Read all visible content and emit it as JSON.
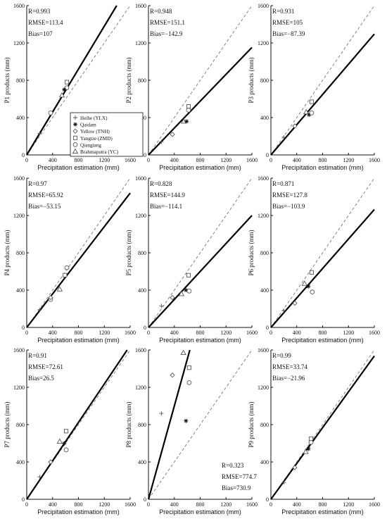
{
  "chart_data": [
    {
      "id": "P1",
      "type": "scatter",
      "ylabel": "P1 products (mm)",
      "xlabel": "Precipitation estimation (mm)",
      "xlim": [
        0,
        1600
      ],
      "ylim": [
        0,
        1600
      ],
      "xticks": [
        "0",
        "400",
        "800",
        "1200",
        "1600"
      ],
      "yticks": [
        "0",
        "400",
        "800",
        "1200",
        "1600"
      ],
      "stats": [
        "R=0.993",
        "RMSE=113.4",
        "Bias=107"
      ],
      "stats_position": "top-left",
      "fit_slope": 1.15,
      "points": [
        {
          "marker": "plus",
          "x": 200,
          "y": 230
        },
        {
          "marker": "circle",
          "x": 370,
          "y": 450
        },
        {
          "marker": "triangle",
          "x": 545,
          "y": 640
        },
        {
          "marker": "square",
          "x": 620,
          "y": 780
        },
        {
          "marker": "circle",
          "x": 620,
          "y": 720
        },
        {
          "marker": "star",
          "x": 580,
          "y": 700
        }
      ]
    },
    {
      "id": "P2",
      "type": "scatter",
      "ylabel": "P2 products (mm)",
      "xlabel": "Precipitation estimation (mm)",
      "xlim": [
        0,
        1600
      ],
      "ylim": [
        0,
        1600
      ],
      "xticks": [
        "0",
        "400",
        "800",
        "1200",
        "1600"
      ],
      "yticks": [
        "0",
        "400",
        "800",
        "1200",
        "1600"
      ],
      "stats": [
        "R=0.948",
        "RMSE=151.1",
        "Bias=−142.9"
      ],
      "stats_position": "top-left",
      "fit_slope": 0.72,
      "points": [
        {
          "marker": "plus",
          "x": 200,
          "y": 140
        },
        {
          "marker": "diamond",
          "x": 370,
          "y": 220
        },
        {
          "marker": "triangle",
          "x": 545,
          "y": 360
        },
        {
          "marker": "star",
          "x": 590,
          "y": 360
        },
        {
          "marker": "square",
          "x": 620,
          "y": 520
        },
        {
          "marker": "circle",
          "x": 620,
          "y": 480
        }
      ]
    },
    {
      "id": "P3",
      "type": "scatter",
      "ylabel": "P3 products (mm)",
      "xlabel": "Precipitation estimation (mm)",
      "xlim": [
        0,
        1600
      ],
      "ylim": [
        0,
        1600
      ],
      "xticks": [
        "0",
        "400",
        "800",
        "1200",
        "1600"
      ],
      "yticks": [
        "0",
        "400",
        "800",
        "1200",
        "1600"
      ],
      "stats": [
        "R=0.931",
        "RMSE=105",
        "Bias=−87.39"
      ],
      "stats_position": "top-left",
      "fit_slope": 0.81,
      "points": [
        {
          "marker": "plus",
          "x": 200,
          "y": 190
        },
        {
          "marker": "diamond",
          "x": 370,
          "y": 310
        },
        {
          "marker": "triangle",
          "x": 545,
          "y": 460
        },
        {
          "marker": "star",
          "x": 590,
          "y": 430
        },
        {
          "marker": "square",
          "x": 630,
          "y": 570
        },
        {
          "marker": "circle",
          "x": 630,
          "y": 450
        }
      ]
    },
    {
      "id": "P4",
      "type": "scatter",
      "ylabel": "P4 products (mm)",
      "xlabel": "Precipitation estimation (mm)",
      "xlim": [
        0,
        1600
      ],
      "ylim": [
        0,
        1600
      ],
      "xticks": [
        "0",
        "400",
        "800",
        "1200",
        "1600"
      ],
      "yticks": [
        "0",
        "400",
        "800",
        "1200",
        "1600"
      ],
      "stats": [
        "R=0.97",
        "RMSE=65.92",
        "Bias=−53.15"
      ],
      "stats_position": "top-left",
      "fit_slope": 0.9,
      "points": [
        {
          "marker": "plus",
          "x": 200,
          "y": 190
        },
        {
          "marker": "circle",
          "x": 370,
          "y": 300
        },
        {
          "marker": "diamond",
          "x": 370,
          "y": 320
        },
        {
          "marker": "triangle",
          "x": 510,
          "y": 410
        },
        {
          "marker": "square",
          "x": 590,
          "y": 560
        },
        {
          "marker": "circle",
          "x": 620,
          "y": 640
        }
      ]
    },
    {
      "id": "P5",
      "type": "scatter",
      "ylabel": "P5 products (mm)",
      "xlabel": "Precipitation estimation (mm)",
      "xlim": [
        0,
        1600
      ],
      "ylim": [
        0,
        1600
      ],
      "xticks": [
        "0",
        "400",
        "800",
        "1200",
        "1600"
      ],
      "yticks": [
        "0",
        "400",
        "800",
        "1200",
        "1600"
      ],
      "stats": [
        "R=0.828",
        "RMSE=144.9",
        "Bias=−114.1"
      ],
      "stats_position": "top-left",
      "fit_slope": 0.75,
      "points": [
        {
          "marker": "plus",
          "x": 200,
          "y": 230
        },
        {
          "marker": "diamond",
          "x": 370,
          "y": 320
        },
        {
          "marker": "triangle",
          "x": 510,
          "y": 360
        },
        {
          "marker": "star",
          "x": 580,
          "y": 400
        },
        {
          "marker": "square",
          "x": 620,
          "y": 560
        },
        {
          "marker": "circle",
          "x": 630,
          "y": 390
        }
      ]
    },
    {
      "id": "P6",
      "type": "scatter",
      "ylabel": "P6 products (mm)",
      "xlabel": "Precipitation estimation (mm)",
      "xlim": [
        0,
        1600
      ],
      "ylim": [
        0,
        1600
      ],
      "xticks": [
        "0",
        "400",
        "800",
        "1200",
        "1600"
      ],
      "yticks": [
        "0",
        "400",
        "800",
        "1200",
        "1600"
      ],
      "stats": [
        "R=0.871",
        "RMSE=127.8",
        "Bias=−103.9"
      ],
      "stats_position": "top-left",
      "fit_slope": 0.79,
      "points": [
        {
          "marker": "plus",
          "x": 200,
          "y": 180
        },
        {
          "marker": "diamond",
          "x": 370,
          "y": 260
        },
        {
          "marker": "triangle",
          "x": 520,
          "y": 470
        },
        {
          "marker": "star",
          "x": 580,
          "y": 440
        },
        {
          "marker": "square",
          "x": 630,
          "y": 590
        },
        {
          "marker": "circle",
          "x": 640,
          "y": 380
        }
      ]
    },
    {
      "id": "P7",
      "type": "scatter",
      "ylabel": "P7 products (mm)",
      "xlabel": "Precipitation estimation (mm)",
      "xlim": [
        0,
        1600
      ],
      "ylim": [
        0,
        1600
      ],
      "xticks": [
        "0",
        "400",
        "800",
        "1200",
        "1600"
      ],
      "yticks": [
        "0",
        "400",
        "800",
        "1200",
        "1600"
      ],
      "stats": [
        "R=0.91",
        "RMSE=72.61",
        "Bias=26.5"
      ],
      "stats_position": "top-left",
      "fit_slope": 1.03,
      "points": [
        {
          "marker": "plus",
          "x": 200,
          "y": 240
        },
        {
          "marker": "diamond",
          "x": 370,
          "y": 400
        },
        {
          "marker": "triangle",
          "x": 510,
          "y": 620
        },
        {
          "marker": "star",
          "x": 580,
          "y": 600
        },
        {
          "marker": "square",
          "x": 610,
          "y": 730
        },
        {
          "marker": "circle",
          "x": 610,
          "y": 530
        }
      ]
    },
    {
      "id": "P8",
      "type": "scatter",
      "ylabel": "P8 products (mm)",
      "xlabel": "Precipitation estimation (mm)",
      "xlim": [
        0,
        1600
      ],
      "ylim": [
        0,
        1600
      ],
      "xticks": [
        "0",
        "400",
        "800",
        "1200",
        "1600"
      ],
      "yticks": [
        "0",
        "400",
        "800",
        "1200",
        "1600"
      ],
      "stats": [
        "R=0.323",
        "RMSE=774.7",
        "Bias=730.9"
      ],
      "stats_position": "bottom-right",
      "fit_slope": 2.5,
      "points": [
        {
          "marker": "plus",
          "x": 200,
          "y": 920
        },
        {
          "marker": "diamond",
          "x": 370,
          "y": 1330
        },
        {
          "marker": "triangle",
          "x": 540,
          "y": 1570
        },
        {
          "marker": "star",
          "x": 580,
          "y": 840
        },
        {
          "marker": "square",
          "x": 630,
          "y": 1410
        },
        {
          "marker": "circle",
          "x": 630,
          "y": 1250
        }
      ]
    },
    {
      "id": "P9",
      "type": "scatter",
      "ylabel": "P9 products (mm)",
      "xlabel": "Precipitation estimation (mm)",
      "xlim": [
        0,
        1600
      ],
      "ylim": [
        0,
        1600
      ],
      "xticks": [
        "0",
        "400",
        "800",
        "1200",
        "1600"
      ],
      "yticks": [
        "0",
        "400",
        "800",
        "1200",
        "1600"
      ],
      "stats": [
        "R=0.99",
        "RMSE=33.74",
        "Bias=−21.96"
      ],
      "stats_position": "top-left",
      "fit_slope": 0.96,
      "points": [
        {
          "marker": "plus",
          "x": 200,
          "y": 180
        },
        {
          "marker": "diamond",
          "x": 370,
          "y": 340
        },
        {
          "marker": "triangle",
          "x": 540,
          "y": 510
        },
        {
          "marker": "star",
          "x": 580,
          "y": 540
        },
        {
          "marker": "square",
          "x": 620,
          "y": 650
        },
        {
          "marker": "circle",
          "x": 620,
          "y": 610
        }
      ]
    }
  ],
  "legend": {
    "panel": "P2",
    "entries": [
      {
        "marker": "plus",
        "label": "Heihe (YLX)"
      },
      {
        "marker": "star",
        "label": "Qaidam"
      },
      {
        "marker": "diamond",
        "label": "Yellow (TNH)"
      },
      {
        "marker": "square",
        "label": "Yangtze (ZMD)"
      },
      {
        "marker": "circle",
        "label": "Qiangtang"
      },
      {
        "marker": "triangle",
        "label": "Brahmaputra (YC)"
      }
    ]
  },
  "colors": {
    "fit_line": "#000000",
    "reference_line": "#777777",
    "marker_stroke": "#555555",
    "axes": "#111111"
  }
}
